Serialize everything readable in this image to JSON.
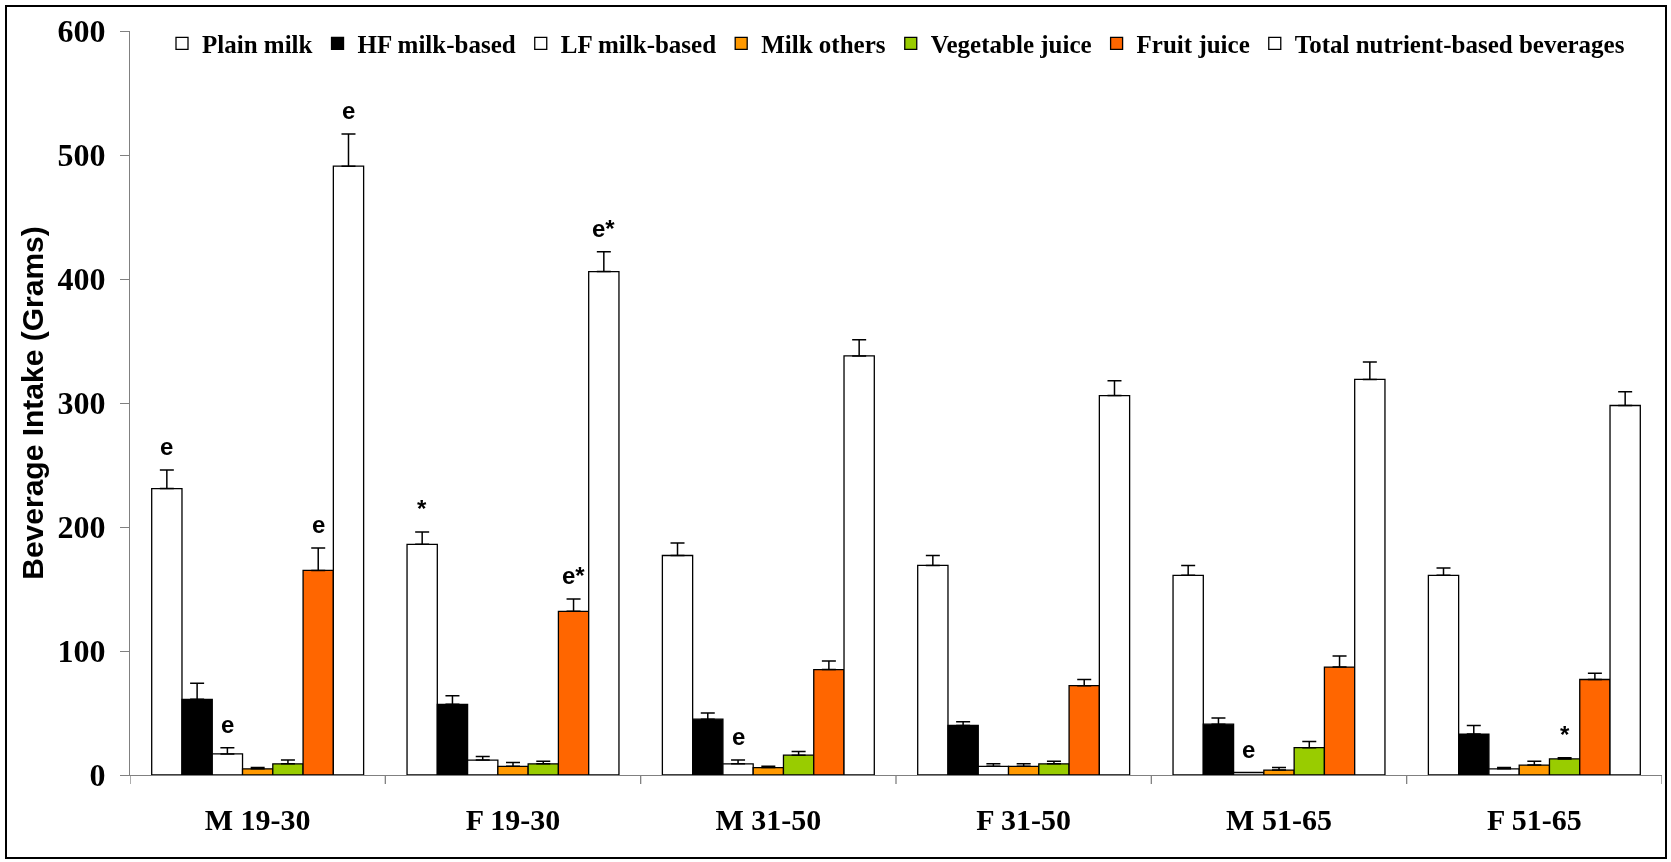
{
  "chart_data": {
    "type": "bar",
    "ylabel": "Beverage Intake (Grams)",
    "categories": [
      "M 19-30",
      "F 19-30",
      "M 31-50",
      "F 31-50",
      "M 51-65",
      "F 51-65"
    ],
    "ylim": [
      0,
      600
    ],
    "yticks": [
      0,
      100,
      200,
      300,
      400,
      500,
      600
    ],
    "legend": "top",
    "series": [
      {
        "name": "Plain milk",
        "color": "#ffffff",
        "values": [
          231,
          186,
          177,
          169,
          161,
          161
        ],
        "errors": [
          [
            231,
            246
          ],
          [
            186,
            196
          ],
          [
            177,
            187
          ],
          [
            169,
            177
          ],
          [
            161,
            169
          ],
          [
            161,
            167
          ]
        ]
      },
      {
        "name": "HF milk-based",
        "color": "#000000",
        "values": [
          61,
          57,
          45,
          40,
          41,
          33
        ],
        "errors": [
          [
            61,
            74
          ],
          [
            57,
            64
          ],
          [
            45,
            50
          ],
          [
            40,
            43
          ],
          [
            41,
            46
          ],
          [
            33,
            40
          ]
        ]
      },
      {
        "name": "LF milk-based",
        "color": "#ffffff",
        "values": [
          17,
          12,
          9,
          7,
          2,
          5
        ],
        "errors": [
          [
            17,
            22
          ],
          [
            12,
            15
          ],
          [
            9,
            12
          ],
          [
            7,
            9
          ],
          null,
          [
            5,
            6
          ]
        ]
      },
      {
        "name": "Milk others",
        "color": "#ff9900",
        "values": [
          5,
          7,
          6,
          7,
          4,
          8
        ],
        "errors": [
          [
            5,
            6
          ],
          [
            7,
            10
          ],
          [
            6,
            7
          ],
          [
            7,
            9
          ],
          [
            4,
            6
          ],
          [
            8,
            11
          ]
        ]
      },
      {
        "name": "Vegetable juice",
        "color": "#99cc00",
        "values": [
          9,
          9,
          16,
          9,
          22,
          13
        ],
        "errors": [
          [
            9,
            12
          ],
          [
            9,
            11
          ],
          [
            16,
            19
          ],
          [
            9,
            11
          ],
          [
            22,
            27
          ],
          [
            13,
            14
          ]
        ]
      },
      {
        "name": "Fruit juice",
        "color": "#ff6600",
        "values": [
          165,
          132,
          85,
          72,
          87,
          77
        ],
        "errors": [
          [
            165,
            183
          ],
          [
            132,
            142
          ],
          [
            85,
            92
          ],
          [
            72,
            77
          ],
          [
            87,
            96
          ],
          [
            77,
            82
          ]
        ]
      },
      {
        "name": "Total nutrient-based beverages",
        "color": "#ffffff",
        "values": [
          491,
          406,
          338,
          306,
          319,
          298
        ],
        "errors": [
          [
            491,
            517
          ],
          [
            406,
            422
          ],
          [
            338,
            351
          ],
          [
            306,
            318
          ],
          [
            319,
            333
          ],
          [
            298,
            309
          ]
        ]
      }
    ],
    "annotations": [
      {
        "text": "e",
        "y": 231
      },
      {
        "text": "e",
        "y": 17
      },
      {
        "text": "e",
        "y": 165
      },
      {
        "text": "e",
        "y": 491
      },
      {
        "text": "*",
        "y": 186
      },
      {
        "text": "e*",
        "y": 132
      },
      {
        "text": "e*",
        "y": 406
      },
      {
        "text": "e",
        "x": "M 31-50",
        "y": 9
      },
      {
        "text": "e",
        "x": "M 51-65",
        "y": 2
      },
      {
        "text": "*",
        "x": "F 51-65",
        "y": 13
      }
    ]
  }
}
